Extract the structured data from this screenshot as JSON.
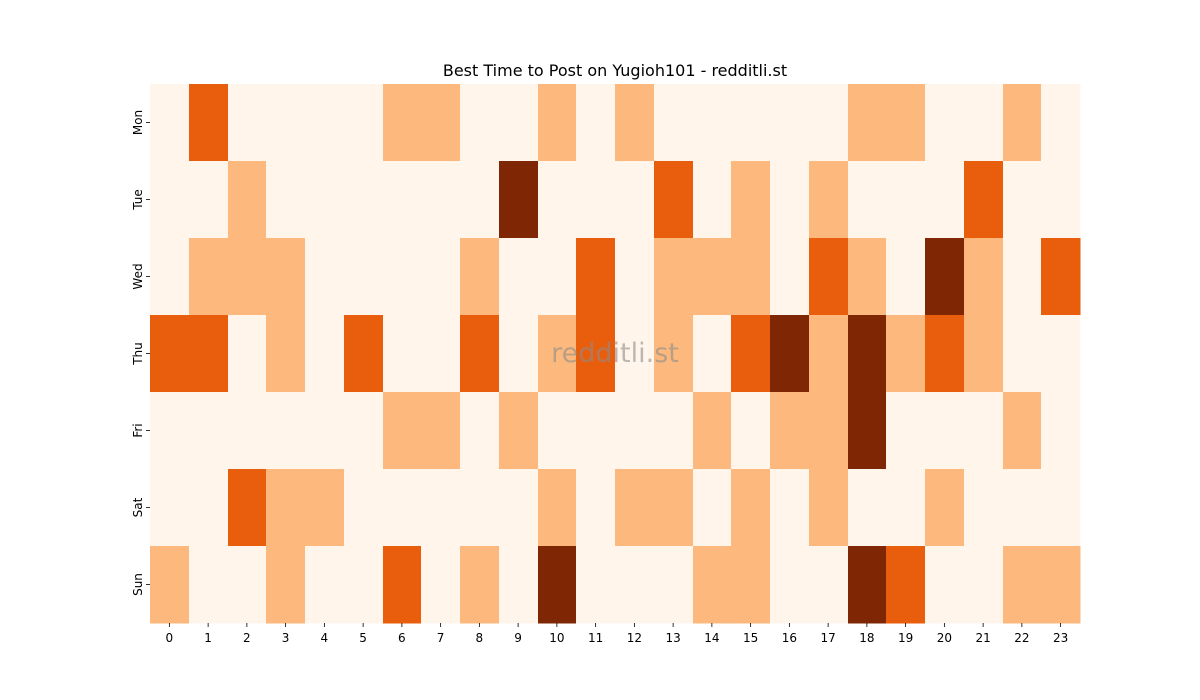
{
  "chart_data": {
    "type": "heatmap",
    "title": "Best Time to Post on Yugioh101 - redditli.st",
    "watermark": "redditli.st",
    "xlabel": "",
    "ylabel": "",
    "x": [
      "0",
      "1",
      "2",
      "3",
      "4",
      "5",
      "6",
      "7",
      "8",
      "9",
      "10",
      "11",
      "12",
      "13",
      "14",
      "15",
      "16",
      "17",
      "18",
      "19",
      "20",
      "21",
      "22",
      "23"
    ],
    "y": [
      "Mon",
      "Tue",
      "Wed",
      "Thu",
      "Fri",
      "Sat",
      "Sun"
    ],
    "values": [
      [
        0,
        2,
        0,
        0,
        0,
        0,
        1,
        1,
        0,
        0,
        1,
        0,
        1,
        0,
        0,
        0,
        0,
        0,
        1,
        1,
        0,
        0,
        1,
        0
      ],
      [
        0,
        0,
        1,
        0,
        0,
        0,
        0,
        0,
        0,
        3,
        0,
        0,
        0,
        2,
        0,
        1,
        0,
        1,
        0,
        0,
        0,
        2,
        0,
        0
      ],
      [
        0,
        1,
        1,
        1,
        0,
        0,
        0,
        0,
        1,
        0,
        0,
        2,
        0,
        1,
        1,
        1,
        0,
        2,
        1,
        0,
        3,
        1,
        0,
        2
      ],
      [
        2,
        2,
        0,
        1,
        0,
        2,
        0,
        0,
        2,
        0,
        1,
        2,
        0,
        1,
        0,
        2,
        3,
        1,
        3,
        1,
        2,
        1,
        0,
        0
      ],
      [
        0,
        0,
        0,
        0,
        0,
        0,
        1,
        1,
        0,
        1,
        0,
        0,
        0,
        0,
        1,
        0,
        1,
        1,
        3,
        0,
        0,
        0,
        1,
        0
      ],
      [
        0,
        0,
        2,
        1,
        1,
        0,
        0,
        0,
        0,
        0,
        1,
        0,
        1,
        1,
        0,
        1,
        0,
        1,
        0,
        0,
        1,
        0,
        0,
        0
      ],
      [
        1,
        0,
        0,
        1,
        0,
        0,
        2,
        0,
        1,
        0,
        3,
        0,
        0,
        0,
        1,
        1,
        0,
        0,
        3,
        2,
        0,
        0,
        1,
        1
      ]
    ],
    "value_range": [
      0,
      3
    ],
    "colors": [
      "#fff5eb",
      "#fdb97d",
      "#e95e0d",
      "#7f2704"
    ],
    "grid": false,
    "legend": "none"
  }
}
